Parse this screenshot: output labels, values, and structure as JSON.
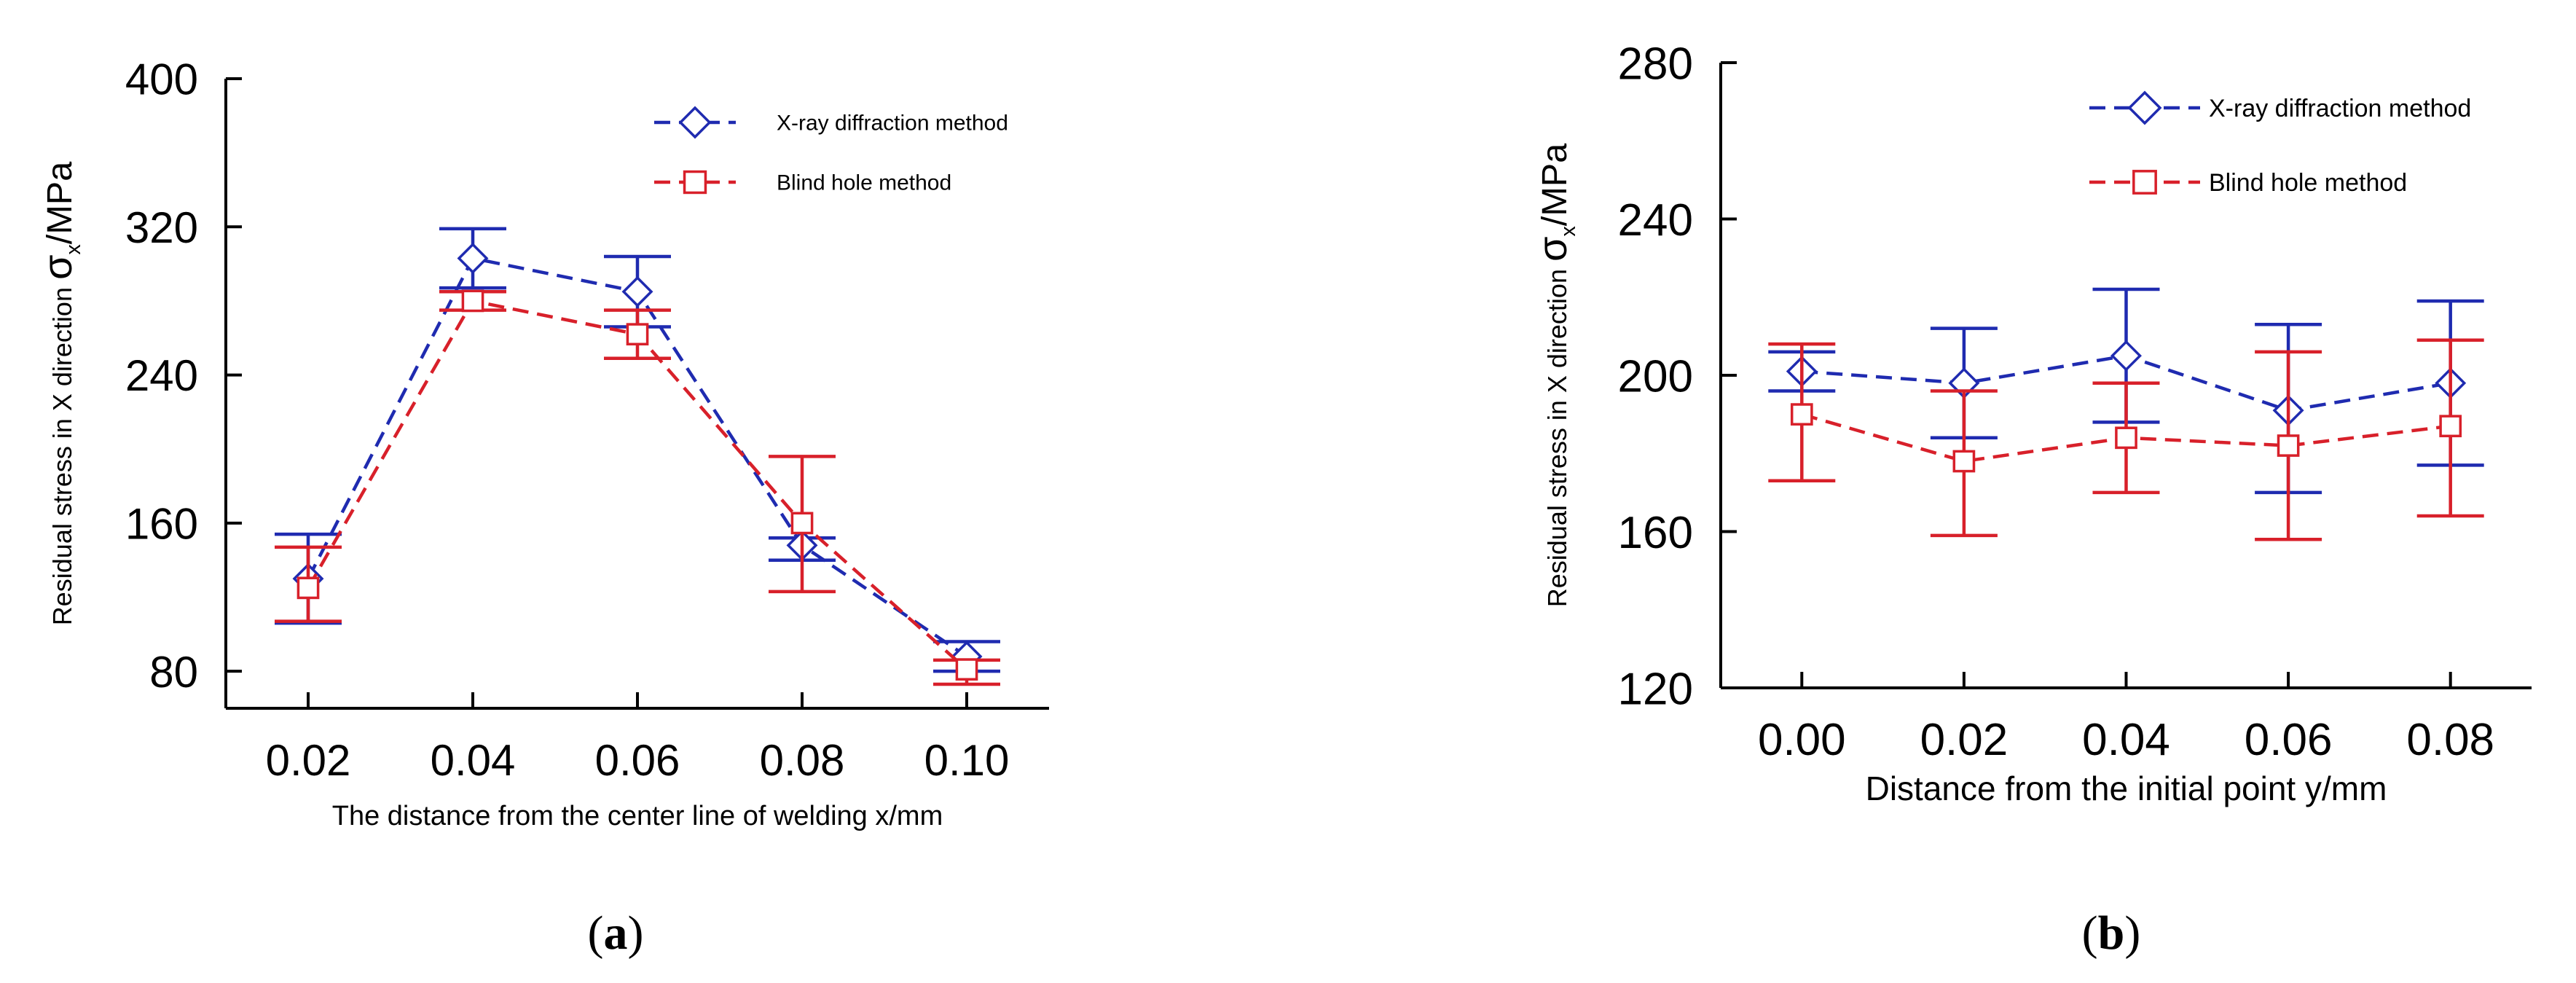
{
  "chart_data": [
    {
      "type": "line",
      "panel_label": "a",
      "xlabel": "The distance from the center line of welding  x/mm",
      "ylabel_main": "Residual stress in X direction ",
      "ylabel_symbol": "σ",
      "ylabel_sub": "x",
      "ylabel_unit": "/MPa",
      "categories": [
        "0.02",
        "0.04",
        "0.06",
        "0.08",
        "0.10"
      ],
      "x": [
        0.02,
        0.04,
        0.06,
        0.08,
        0.1
      ],
      "xlim": [
        0.01,
        0.11
      ],
      "ylim": [
        60,
        400
      ],
      "yticks": [
        80,
        160,
        240,
        320,
        400
      ],
      "grid": false,
      "legend_position": "top-right",
      "series": [
        {
          "name": "X-ray diffraction method",
          "color": "#1f2bb0",
          "marker": "diamond",
          "values": [
            130,
            303,
            285,
            148,
            88
          ],
          "error_low": [
            106,
            287,
            266,
            140,
            80
          ],
          "error_high": [
            154,
            319,
            304,
            152,
            96
          ]
        },
        {
          "name": "Blind hole method",
          "color": "#d8202a",
          "marker": "square",
          "values": [
            125,
            280,
            262,
            160,
            81
          ],
          "error_low": [
            107,
            275,
            249,
            123,
            73
          ],
          "error_high": [
            147,
            285,
            275,
            196,
            86
          ]
        }
      ]
    },
    {
      "type": "line",
      "panel_label": "b",
      "xlabel": "Distance from the initial point  y/mm",
      "ylabel_main": "Residual stress in X direction ",
      "ylabel_symbol": "σ",
      "ylabel_sub": "x",
      "ylabel_unit": "/MPa",
      "categories": [
        "0.00",
        "0.02",
        "0.04",
        "0.06",
        "0.08"
      ],
      "x": [
        0.0,
        0.02,
        0.04,
        0.06,
        0.08
      ],
      "xlim": [
        -0.01,
        0.09
      ],
      "ylim": [
        120,
        280
      ],
      "yticks": [
        120,
        160,
        200,
        240,
        280
      ],
      "grid": false,
      "legend_position": "top-right",
      "series": [
        {
          "name": "X-ray diffraction method",
          "color": "#1f2bb0",
          "marker": "diamond",
          "values": [
            201,
            198,
            205,
            191,
            198
          ],
          "error_low": [
            196,
            184,
            188,
            170,
            177
          ],
          "error_high": [
            206,
            212,
            222,
            213,
            219
          ]
        },
        {
          "name": "Blind hole method",
          "color": "#d8202a",
          "marker": "square",
          "values": [
            190,
            178,
            184,
            182,
            187
          ],
          "error_low": [
            173,
            159,
            170,
            158,
            164
          ],
          "error_high": [
            208,
            196,
            198,
            206,
            209
          ]
        }
      ]
    }
  ]
}
